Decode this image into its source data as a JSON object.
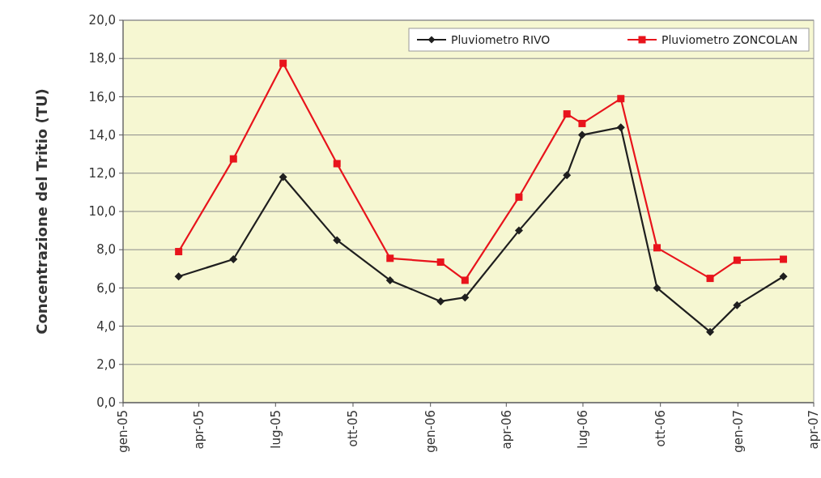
{
  "chart_data": {
    "type": "line",
    "ylabel": "Concentrazione  del Tritio  (TU)",
    "x": [
      "2005-03-08",
      "2005-05-12",
      "2005-07-10",
      "2005-09-12",
      "2005-11-14",
      "2006-01-13",
      "2006-02-11",
      "2006-04-16",
      "2006-06-12",
      "2006-06-30",
      "2006-08-15",
      "2006-09-27",
      "2006-11-29",
      "2006-12-31",
      "2007-02-24"
    ],
    "series": [
      {
        "name": "Pluviometro RIVO",
        "color": "#1f1f1f",
        "marker": "diamond",
        "values": [
          6.6,
          7.5,
          11.8,
          8.5,
          6.4,
          5.3,
          5.5,
          9.0,
          11.9,
          14.0,
          14.4,
          6.0,
          3.7,
          5.1,
          6.6
        ]
      },
      {
        "name": "Pluviometro ZONCOLAN",
        "color": "#e8141c",
        "marker": "square",
        "values": [
          7.9,
          12.75,
          17.75,
          12.5,
          7.55,
          7.35,
          6.4,
          10.75,
          15.1,
          14.6,
          15.9,
          8.1,
          6.5,
          7.45,
          7.5
        ]
      }
    ],
    "xlim": [
      "2005-01-01",
      "2007-04-01"
    ],
    "xticks": [
      {
        "value": "2005-01-01",
        "label": "gen-05"
      },
      {
        "value": "2005-04-01",
        "label": "apr-05"
      },
      {
        "value": "2005-07-01",
        "label": "lug-05"
      },
      {
        "value": "2005-10-01",
        "label": "ott-05"
      },
      {
        "value": "2006-01-01",
        "label": "gen-06"
      },
      {
        "value": "2006-04-01",
        "label": "apr-06"
      },
      {
        "value": "2006-07-01",
        "label": "lug-06"
      },
      {
        "value": "2006-10-01",
        "label": "ott-06"
      },
      {
        "value": "2007-01-01",
        "label": "gen-07"
      },
      {
        "value": "2007-04-01",
        "label": "apr-07"
      }
    ],
    "ylim": [
      0,
      20
    ],
    "yticks": [
      {
        "value": 0,
        "label": "0,0"
      },
      {
        "value": 2,
        "label": "2,0"
      },
      {
        "value": 4,
        "label": "4,0"
      },
      {
        "value": 6,
        "label": "6,0"
      },
      {
        "value": 8,
        "label": "8,0"
      },
      {
        "value": 10,
        "label": "10,0"
      },
      {
        "value": 12,
        "label": "12,0"
      },
      {
        "value": 14,
        "label": "14,0"
      },
      {
        "value": 16,
        "label": "16,0"
      },
      {
        "value": 18,
        "label": "18,0"
      },
      {
        "value": 20,
        "label": "20,0"
      }
    ],
    "grid": "y",
    "legend": "top right"
  }
}
